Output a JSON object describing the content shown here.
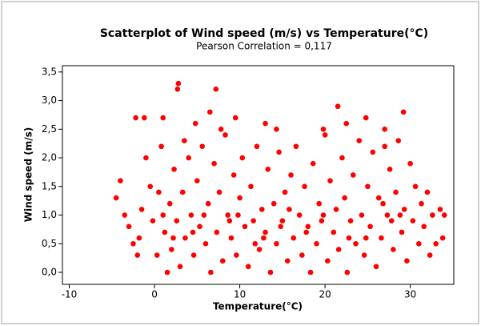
{
  "chart_data": {
    "type": "scatter",
    "title": "Scatterplot of Wind speed (m/s) vs Temperature(°C)",
    "subtitle": "Pearson Correlation = 0,117",
    "x_label": "Temperature(°C)",
    "y_label": "Wind speed (m/s)",
    "color": "#ff0000",
    "xlim": [
      -10.8,
      35.1
    ],
    "ylim": [
      -0.21,
      3.61
    ],
    "xticks": [
      -10,
      0,
      10,
      20,
      30
    ],
    "yticks": [
      {
        "value": 0,
        "label": "0,0"
      },
      {
        "value": 0.5,
        "label": "0,5"
      },
      {
        "value": 1,
        "label": "1,0"
      },
      {
        "value": 1.5,
        "label": "1,5"
      },
      {
        "value": 2,
        "label": "2,0"
      },
      {
        "value": 2.5,
        "label": "2,5"
      },
      {
        "value": 3,
        "label": "3,0"
      },
      {
        "value": 3.5,
        "label": "3,5"
      }
    ],
    "x": [
      2.8,
      2.7,
      7.2,
      6.5,
      21.5,
      29.2,
      -2.2,
      -1.2,
      1,
      4.8,
      9.5,
      13,
      14.3,
      19.8,
      22.5,
      24.8,
      27,
      7.8,
      3.5,
      -4,
      -4.5,
      -3.5,
      -3,
      -2.5,
      -2,
      -1.8,
      -1.5,
      -1,
      -0.5,
      -0.2,
      0.3,
      0.5,
      0.8,
      1.2,
      1.5,
      1.8,
      2,
      2.3,
      2.6,
      3,
      3.3,
      3.6,
      4,
      4.3,
      4.6,
      5,
      5.3,
      5.6,
      6,
      6.3,
      6.6,
      7,
      7.3,
      7.6,
      8,
      8.3,
      8.6,
      9,
      9.3,
      9.6,
      10,
      10.3,
      10.6,
      11,
      11.3,
      11.6,
      12,
      12.3,
      12.6,
      13,
      13.3,
      13.6,
      14,
      14.3,
      14.6,
      15,
      15.3,
      15.6,
      16,
      16.3,
      16.6,
      17,
      17.3,
      17.6,
      18,
      18.3,
      18.6,
      19,
      19.3,
      19.6,
      20,
      20.3,
      20.6,
      21,
      21.3,
      21.6,
      22,
      22.3,
      22.6,
      23,
      23.3,
      23.6,
      24,
      24.3,
      24.6,
      25,
      25.3,
      25.6,
      26,
      26.3,
      26.6,
      27,
      27.3,
      27.6,
      28,
      28.3,
      28.6,
      29,
      29.3,
      29.6,
      30,
      30.3,
      30.6,
      31,
      31.3,
      31.6,
      32,
      32.3,
      32.6,
      33,
      33.5,
      34,
      33.8,
      4.5,
      8.8,
      12.8,
      17.8,
      22.8,
      27.8,
      5.8,
      9.8,
      14.8,
      19.8,
      24.8,
      28.8,
      2.2,
      11.8,
      15.8,
      26.8,
      1
    ],
    "y": [
      3.3,
      3.2,
      3.2,
      2.8,
      2.9,
      2.8,
      2.7,
      2.7,
      2.7,
      2.6,
      2.7,
      2.6,
      2.5,
      2.5,
      2.6,
      2.7,
      2.5,
      2.5,
      2.3,
      1.6,
      1.3,
      1,
      0.8,
      0.5,
      0.3,
      0.6,
      1.1,
      2,
      1.5,
      0.9,
      0.3,
      1.4,
      2.2,
      0.7,
      0,
      1.2,
      0.4,
      1.8,
      0.9,
      0.1,
      1.4,
      0.6,
      2,
      1,
      0.3,
      1.6,
      0.8,
      2.2,
      0.5,
      1.2,
      0,
      1.9,
      0.7,
      1.4,
      0.2,
      2.4,
      1,
      0.6,
      1.7,
      0.3,
      1.3,
      2,
      0.8,
      0.1,
      1.5,
      0.9,
      2.2,
      0.4,
      1.1,
      0.7,
      1.8,
      0,
      1.2,
      0.5,
      2.1,
      0.9,
      1.4,
      0.2,
      1.7,
      0.6,
      2.2,
      1,
      0.3,
      1.5,
      0.8,
      0,
      1.9,
      0.5,
      1.2,
      0.9,
      2.4,
      0.2,
      1.6,
      0.7,
      1.1,
      0.4,
      2,
      1.3,
      0,
      0.9,
      1.7,
      0.5,
      2.3,
      1,
      0.3,
      1.5,
      0.8,
      2.1,
      0.1,
      1.3,
      0.6,
      2.2,
      1,
      1.8,
      0.4,
      1.4,
      2.3,
      0.7,
      1.1,
      0.2,
      1.9,
      0.9,
      1.5,
      0.5,
      1.2,
      0.8,
      1.4,
      0.3,
      1,
      0.5,
      1.1,
      1,
      0.6,
      0.7,
      0.9,
      0.6,
      0.7,
      0.6,
      0.9,
      1,
      1,
      0.8,
      1,
      0.6,
      1,
      0.6,
      0.5,
      1.1,
      1.2,
      1
    ]
  }
}
